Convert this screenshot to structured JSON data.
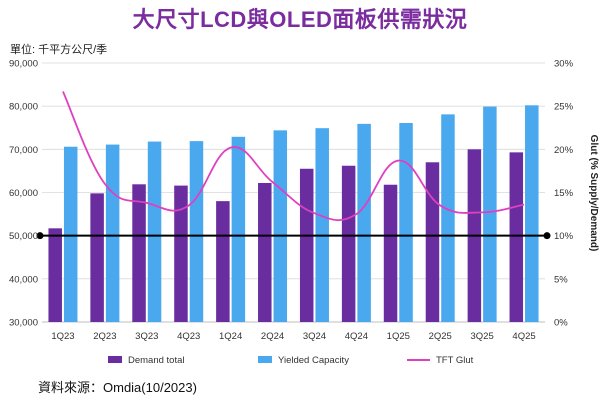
{
  "title": "大尺寸LCD與OLED面板供需狀況",
  "unit_label": "單位: 千平方公尺/季",
  "source": "資料來源：Omdia(10/2023)",
  "colors": {
    "demand": "#6a2d9f",
    "capacity": "#4aa8ee",
    "glut": "#e040c0",
    "title": "#7b2c9e"
  },
  "chart_data": {
    "type": "bar",
    "categories": [
      "1Q23",
      "2Q23",
      "3Q23",
      "4Q23",
      "1Q24",
      "2Q24",
      "3Q24",
      "4Q24",
      "1Q25",
      "2Q25",
      "3Q25",
      "4Q25"
    ],
    "series": [
      {
        "name": "Demand total",
        "type": "bar",
        "axis": "left",
        "values": [
          51700,
          59800,
          61900,
          61600,
          58000,
          62200,
          65500,
          66200,
          61800,
          67000,
          70000,
          69300
        ]
      },
      {
        "name": "Yielded Capacity",
        "type": "bar",
        "axis": "left",
        "values": [
          70600,
          71100,
          71800,
          71900,
          72900,
          74400,
          74900,
          75900,
          76100,
          78100,
          79900,
          80200
        ]
      },
      {
        "name": "TFT Glut",
        "type": "line",
        "axis": "right",
        "values": [
          26.7,
          16.0,
          13.8,
          13.5,
          20.2,
          16.2,
          12.6,
          12.5,
          18.7,
          13.5,
          12.7,
          13.6
        ]
      }
    ],
    "y_left": {
      "min": 30000,
      "max": 90000,
      "ticks": [
        "30,000",
        "40,000",
        "50,000",
        "60,000",
        "70,000",
        "80,000",
        "90,000"
      ]
    },
    "y_right": {
      "min": 0,
      "max": 30,
      "ticks": [
        "0%",
        "5%",
        "10%",
        "15%",
        "20%",
        "25%",
        "30%"
      ],
      "label": "Glut (% Supply/Demand)"
    },
    "reference_line": {
      "axis": "right",
      "value": 10
    },
    "grid": true,
    "legend_position": "bottom"
  }
}
